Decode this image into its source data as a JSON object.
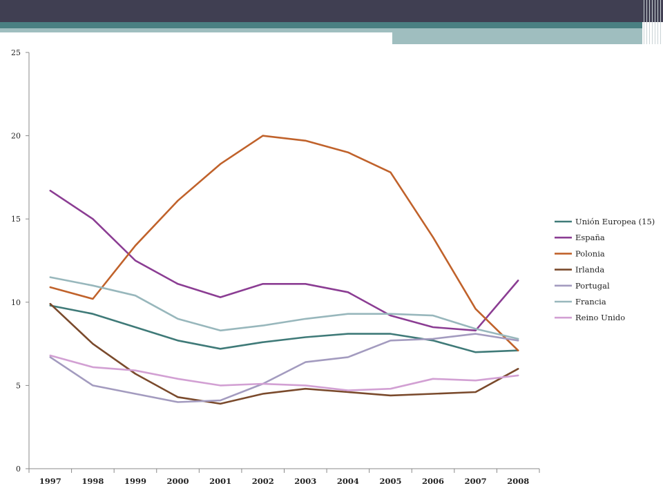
{
  "chart_data": {
    "type": "line",
    "title": "",
    "xlabel": "",
    "ylabel": "",
    "ylim": [
      0,
      25
    ],
    "yticks": [
      "0",
      "5",
      "10",
      "15",
      "20",
      "25"
    ],
    "categories": [
      "1997",
      "1998",
      "1999",
      "2000",
      "2001",
      "2002",
      "2003",
      "2004",
      "2005",
      "2006",
      "2007",
      "2008"
    ],
    "grid": false,
    "legend_position": "right",
    "series": [
      {
        "name": "Unión Europea (15)",
        "color": "#3f7a78",
        "values": [
          9.8,
          9.3,
          8.5,
          7.7,
          7.2,
          7.6,
          7.9,
          8.1,
          8.1,
          7.7,
          7.0,
          7.1
        ]
      },
      {
        "name": "España",
        "color": "#8b3d93",
        "values": [
          16.7,
          15.0,
          12.5,
          11.1,
          10.3,
          11.1,
          11.1,
          10.6,
          9.2,
          8.5,
          8.3,
          11.3
        ]
      },
      {
        "name": "Polonia",
        "color": "#c0622b",
        "values": [
          10.9,
          10.2,
          13.4,
          16.1,
          18.3,
          20.0,
          19.7,
          19.0,
          17.8,
          13.9,
          9.6,
          7.1
        ]
      },
      {
        "name": "Irlanda",
        "color": "#7a4a2c",
        "values": [
          9.9,
          7.5,
          5.7,
          4.3,
          3.9,
          4.5,
          4.8,
          4.6,
          4.4,
          4.5,
          4.6,
          6.0
        ]
      },
      {
        "name": "Portugal",
        "color": "#a39bbf",
        "values": [
          6.7,
          5.0,
          4.5,
          4.0,
          4.1,
          5.1,
          6.4,
          6.7,
          7.7,
          7.8,
          8.1,
          7.7
        ]
      },
      {
        "name": "Francia",
        "color": "#98b7bc",
        "values": [
          11.5,
          11.0,
          10.4,
          9.0,
          8.3,
          8.6,
          9.0,
          9.3,
          9.3,
          9.2,
          8.4,
          7.8
        ]
      },
      {
        "name": "Reino Unido",
        "color": "#d2a0d3",
        "values": [
          6.8,
          6.1,
          5.9,
          5.4,
          5.0,
          5.1,
          5.0,
          4.7,
          4.8,
          5.4,
          5.3,
          5.6
        ]
      }
    ]
  }
}
